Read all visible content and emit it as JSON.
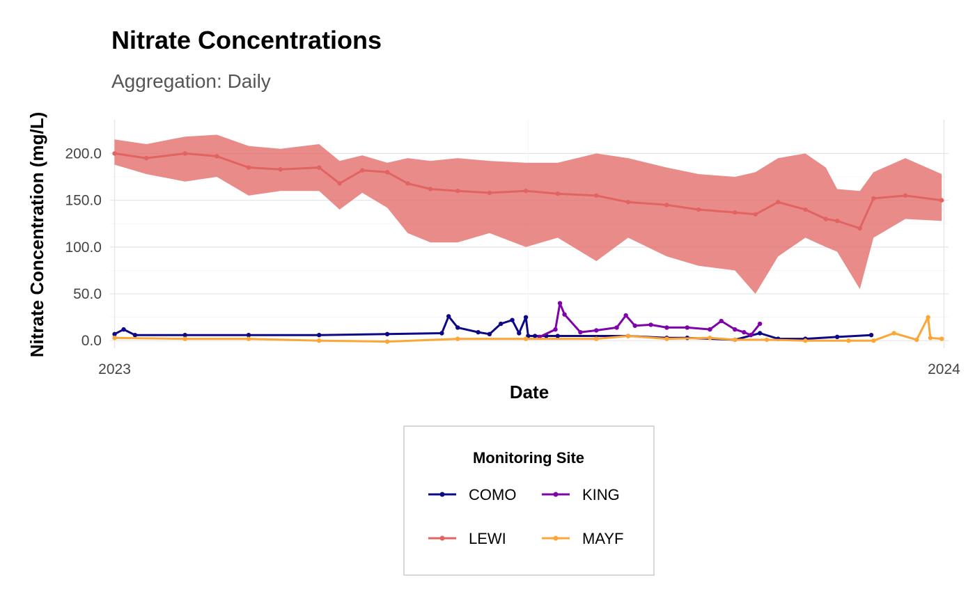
{
  "chart_data": {
    "type": "line",
    "title": "Nitrate Concentrations",
    "subtitle": "Aggregation: Daily",
    "xlabel": "Date",
    "ylabel": "Nitrate Concentration (mg/L)",
    "xlim": [
      "2022-12-30",
      "2024-01-03"
    ],
    "ylim": [
      -8,
      236
    ],
    "x_ticks": [
      "2023",
      "2024"
    ],
    "x_tick_dates": [
      "2023-01-01",
      "2024-01-01"
    ],
    "y_ticks": [
      0,
      50,
      100,
      150,
      200
    ],
    "y_tick_labels": [
      "0.0",
      "50.0",
      "100.0",
      "150.0",
      "200.0"
    ],
    "grid": true,
    "legend": {
      "title": "Monitoring Site",
      "position": "bottom",
      "items": [
        "COMO",
        "KING",
        "LEWI",
        "MAYF"
      ]
    },
    "series": [
      {
        "name": "COMO",
        "color": "#0d0887",
        "x": [
          "2023-01-01",
          "2023-01-05",
          "2023-01-10",
          "2023-02-01",
          "2023-03-01",
          "2023-04-01",
          "2023-05-01",
          "2023-05-25",
          "2023-05-28",
          "2023-06-01",
          "2023-06-10",
          "2023-06-15",
          "2023-06-20",
          "2023-06-25",
          "2023-06-28",
          "2023-07-01",
          "2023-07-02",
          "2023-07-05",
          "2023-07-10",
          "2023-07-15",
          "2023-08-15",
          "2023-09-01",
          "2023-09-10",
          "2023-10-01",
          "2023-10-12",
          "2023-10-20",
          "2023-11-01",
          "2023-11-15",
          "2023-11-30"
        ],
        "y": [
          7,
          12,
          6,
          6,
          6,
          6,
          7,
          8,
          26,
          14,
          9,
          7,
          18,
          22,
          8,
          25,
          5,
          5,
          5,
          5,
          5,
          3,
          3,
          1,
          8,
          2,
          2,
          4,
          6
        ]
      },
      {
        "name": "KING",
        "color": "#7e03a8",
        "x": [
          "2023-07-07",
          "2023-07-14",
          "2023-07-16",
          "2023-07-18",
          "2023-07-25",
          "2023-08-01",
          "2023-08-10",
          "2023-08-14",
          "2023-08-18",
          "2023-08-25",
          "2023-09-01",
          "2023-09-10",
          "2023-09-20",
          "2023-09-25",
          "2023-10-01",
          "2023-10-05",
          "2023-10-08",
          "2023-10-12"
        ],
        "y": [
          4,
          12,
          40,
          28,
          9,
          11,
          14,
          27,
          16,
          17,
          14,
          14,
          12,
          21,
          12,
          9,
          6,
          18
        ]
      },
      {
        "name": "LEWI",
        "color": "#e16462",
        "x": [
          "2023-01-01",
          "2023-01-15",
          "2023-02-01",
          "2023-02-15",
          "2023-03-01",
          "2023-03-15",
          "2023-04-01",
          "2023-04-10",
          "2023-04-20",
          "2023-05-01",
          "2023-05-10",
          "2023-05-20",
          "2023-06-01",
          "2023-06-15",
          "2023-07-01",
          "2023-07-15",
          "2023-08-01",
          "2023-08-15",
          "2023-09-01",
          "2023-09-15",
          "2023-10-01",
          "2023-10-10",
          "2023-10-20",
          "2023-11-01",
          "2023-11-10",
          "2023-11-15",
          "2023-11-25",
          "2023-12-01",
          "2023-12-15",
          "2023-12-31"
        ],
        "y": [
          200,
          195,
          200,
          197,
          185,
          183,
          185,
          168,
          182,
          180,
          168,
          162,
          160,
          158,
          160,
          157,
          155,
          148,
          145,
          140,
          137,
          135,
          148,
          140,
          130,
          128,
          120,
          152,
          155,
          150
        ],
        "y_min": [
          188,
          178,
          170,
          175,
          155,
          160,
          160,
          140,
          158,
          142,
          115,
          105,
          105,
          115,
          100,
          110,
          85,
          110,
          90,
          80,
          75,
          50,
          90,
          110,
          100,
          95,
          55,
          110,
          130,
          128
        ],
        "y_max": [
          215,
          210,
          218,
          220,
          208,
          205,
          210,
          192,
          198,
          190,
          195,
          192,
          195,
          192,
          190,
          190,
          200,
          195,
          185,
          178,
          175,
          180,
          195,
          200,
          185,
          162,
          160,
          180,
          195,
          178
        ]
      },
      {
        "name": "MAYF",
        "color": "#fca636",
        "x": [
          "2023-01-01",
          "2023-02-01",
          "2023-03-01",
          "2023-04-01",
          "2023-05-01",
          "2023-06-01",
          "2023-07-01",
          "2023-08-01",
          "2023-08-15",
          "2023-09-01",
          "2023-09-20",
          "2023-10-01",
          "2023-10-15",
          "2023-11-01",
          "2023-11-20",
          "2023-12-01",
          "2023-12-10",
          "2023-12-20",
          "2023-12-25",
          "2023-12-26",
          "2023-12-31"
        ],
        "y": [
          3,
          2,
          2,
          0,
          -1,
          2,
          2,
          2,
          5,
          2,
          3,
          1,
          1,
          0,
          0,
          0,
          8,
          1,
          25,
          3,
          2
        ]
      }
    ]
  }
}
